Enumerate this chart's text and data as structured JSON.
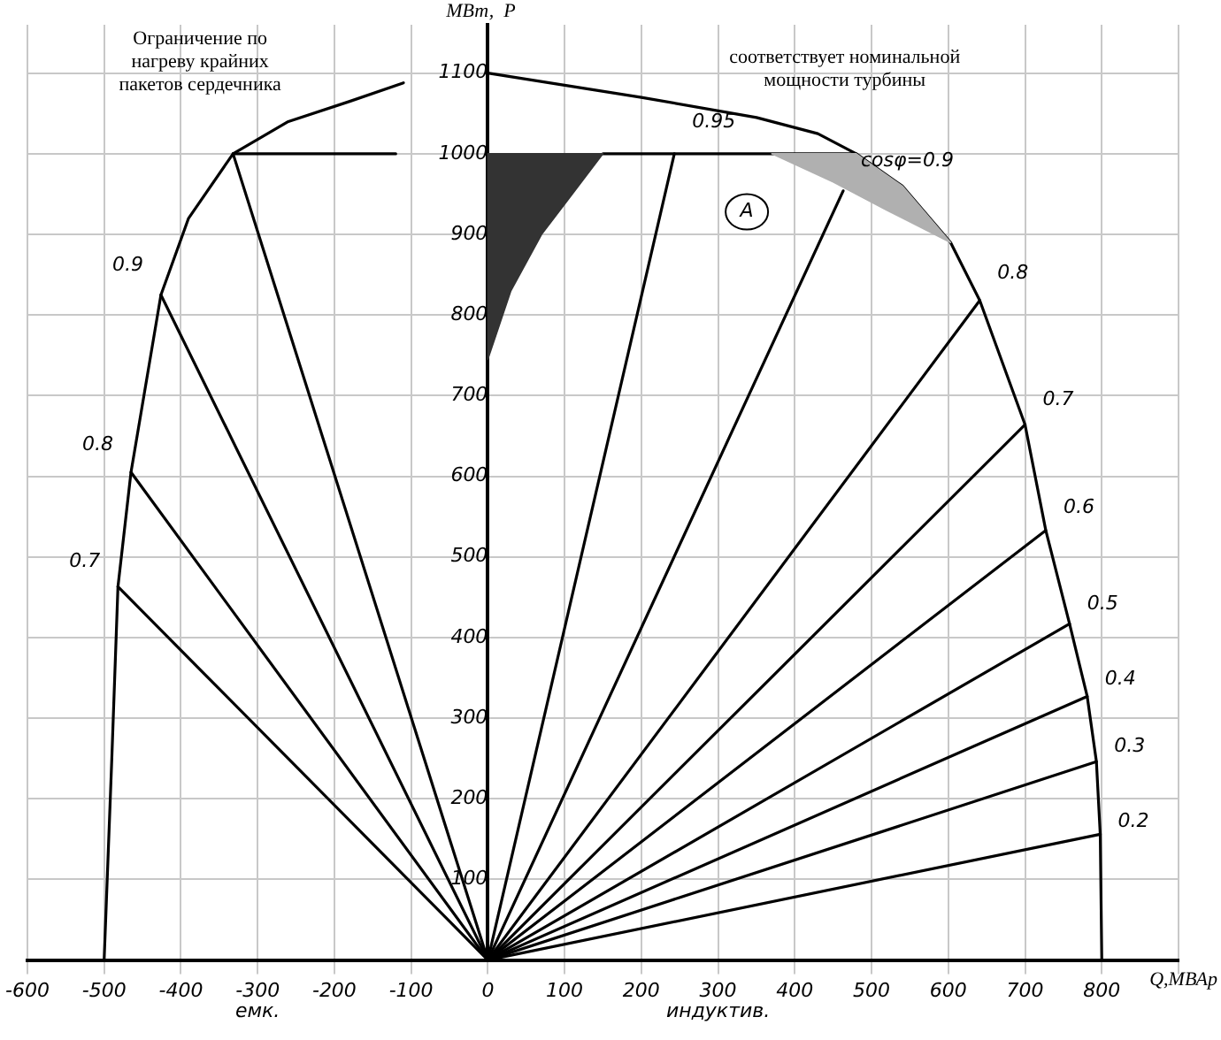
{
  "chart_data": {
    "type": "line",
    "xlabel": "Q,МВАр",
    "ylabel": "МВт,  Р",
    "xlim": [
      -600,
      900
    ],
    "ylim": [
      0,
      1160
    ],
    "xticks": [
      -600,
      -500,
      -400,
      -300,
      -200,
      -100,
      0,
      100,
      200,
      300,
      400,
      500,
      600,
      700,
      800,
      {
        "value": 900,
        "label": null
      }
    ],
    "yticks": [
      {
        "value": 0,
        "label": null
      },
      100,
      200,
      300,
      400,
      500,
      600,
      700,
      800,
      900,
      1000,
      1100
    ],
    "grid": true,
    "legend": false,
    "marker": "none",
    "line_style": "solid",
    "series": [
      {
        "type": "area",
        "color": "#333333",
        "x": [
          0,
          0,
          30,
          70,
          110,
          150,
          0
        ],
        "values": [
          1000,
          745,
          830,
          900,
          950,
          1000,
          1000
        ]
      },
      {
        "type": "area",
        "color": "#b0b0b0",
        "x": [
          370,
          480,
          540,
          603,
          520,
          450,
          370
        ],
        "values": [
          1000,
          1000,
          960,
          890,
          930,
          965,
          1000
        ]
      },
      {
        "color": "#000000",
        "x": [
          -500,
          -490,
          -482,
          -465,
          -426,
          -390,
          -332,
          -260,
          -180,
          -110
        ],
        "values": [
          0,
          250,
          463,
          605,
          825,
          920,
          1000,
          1040,
          1065,
          1088
        ]
      },
      {
        "color": "#000000",
        "x": [
          -332,
          -120
        ],
        "values": [
          1000,
          1000
        ]
      },
      {
        "color": "#000000",
        "x": [
          0,
          200,
          350,
          430,
          480,
          540,
          603,
          641,
          700,
          727,
          758,
          781,
          793,
          798,
          800
        ],
        "values": [
          1100,
          1070,
          1045,
          1025,
          1000,
          960,
          890,
          818,
          664,
          533,
          417,
          327,
          246,
          156,
          0
        ]
      },
      {
        "color": "#000000",
        "x": [
          150,
          480
        ],
        "values": [
          1000,
          1000
        ]
      },
      {
        "name": "0.7",
        "color": "#000000",
        "x": [
          0,
          -482
        ],
        "values": [
          0,
          463
        ]
      },
      {
        "name": "0.8",
        "color": "#000000",
        "x": [
          0,
          -465
        ],
        "values": [
          0,
          605
        ]
      },
      {
        "name": "0.9",
        "color": "#000000",
        "x": [
          0,
          -426
        ],
        "values": [
          0,
          825
        ]
      },
      {
        "color": "#000000",
        "x": [
          0,
          -332
        ],
        "values": [
          0,
          1000
        ]
      },
      {
        "name": "0.95",
        "color": "#000000",
        "x": [
          0,
          243
        ],
        "values": [
          0,
          1000
        ]
      },
      {
        "name": "cosφ=0.9",
        "color": "#000000",
        "x": [
          0,
          463
        ],
        "values": [
          0,
          954
        ]
      },
      {
        "name": "0.8",
        "color": "#000000",
        "x": [
          0,
          641
        ],
        "values": [
          0,
          818
        ]
      },
      {
        "name": "0.7",
        "color": "#000000",
        "x": [
          0,
          700
        ],
        "values": [
          0,
          664
        ]
      },
      {
        "name": "0.6",
        "color": "#000000",
        "x": [
          0,
          727
        ],
        "values": [
          0,
          533
        ]
      },
      {
        "name": "0.5",
        "color": "#000000",
        "x": [
          0,
          758
        ],
        "values": [
          0,
          417
        ]
      },
      {
        "name": "0.4",
        "color": "#000000",
        "x": [
          0,
          781
        ],
        "values": [
          0,
          327
        ]
      },
      {
        "name": "0.3",
        "color": "#000000",
        "x": [
          0,
          793
        ],
        "values": [
          0,
          246
        ]
      },
      {
        "name": "0.2",
        "color": "#000000",
        "x": [
          0,
          798
        ],
        "values": [
          0,
          156
        ]
      }
    ],
    "annotations": [
      "Ограничение по\nнагреву крайних\nпакетов сердечника",
      "соответствует номинальной\nмощности турбины",
      "A",
      "емк.",
      "индуктив."
    ]
  }
}
